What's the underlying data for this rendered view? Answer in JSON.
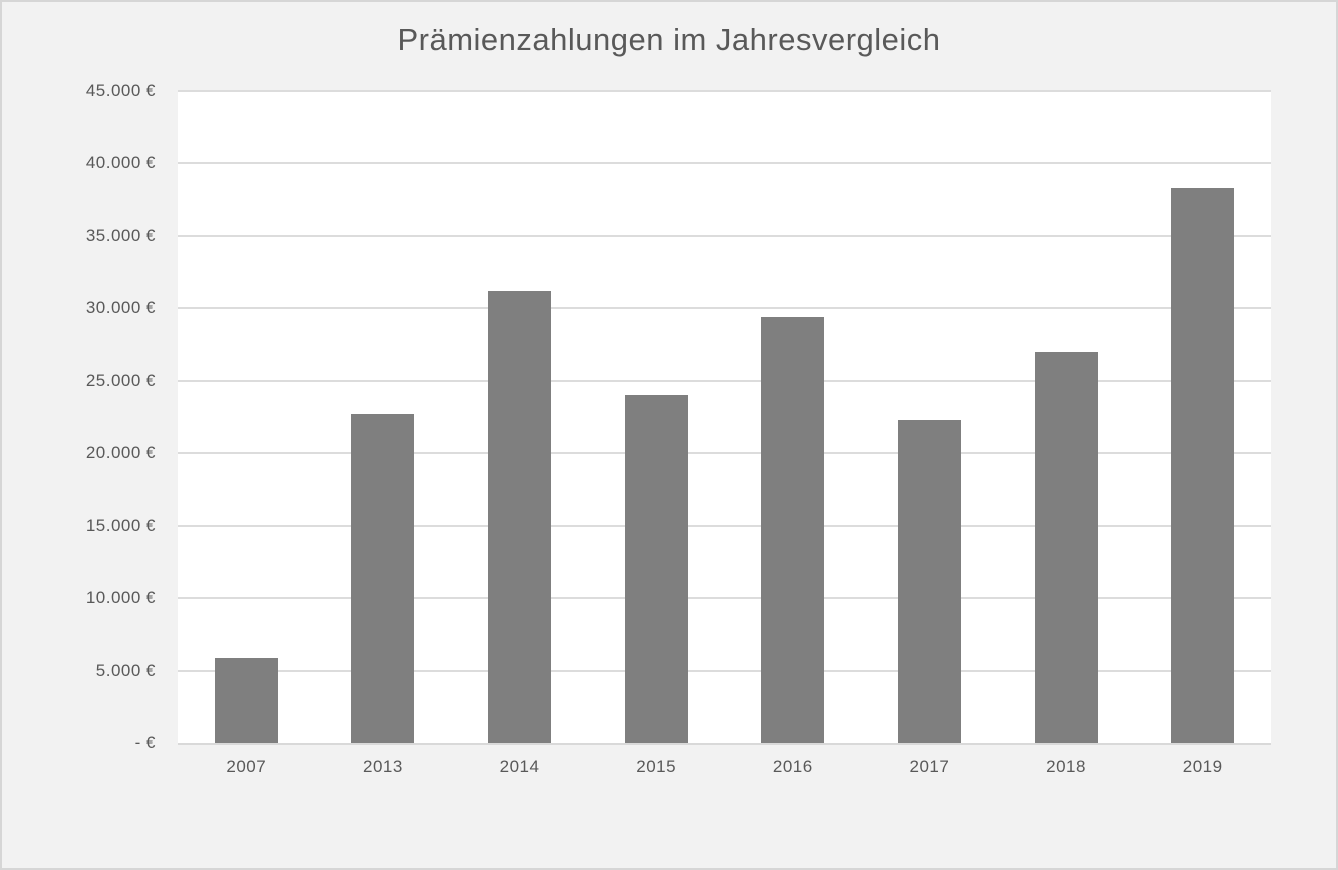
{
  "window": {
    "background": "#f2f2f2",
    "border_color": "#d6d6d6"
  },
  "chart_data": {
    "type": "bar",
    "title": "Prämienzahlungen im Jahresvergleich",
    "xlabel": "",
    "ylabel": "",
    "categories": [
      "2007",
      "2013",
      "2014",
      "2015",
      "2016",
      "2017",
      "2018",
      "2019"
    ],
    "values": [
      5900,
      22700,
      31200,
      24000,
      29400,
      22300,
      27000,
      38300
    ],
    "value_unit": "€",
    "ylim": [
      0,
      45000
    ],
    "grid": true,
    "legend": "none",
    "y_axis": {
      "max": 45000,
      "tick_step": 5000,
      "ticks": [
        {
          "value": 45000,
          "label": "45.000 €"
        },
        {
          "value": 40000,
          "label": "40.000 €"
        },
        {
          "value": 35000,
          "label": "35.000 €"
        },
        {
          "value": 30000,
          "label": "30.000 €"
        },
        {
          "value": 25000,
          "label": "25.000 €"
        },
        {
          "value": 20000,
          "label": "20.000 €"
        },
        {
          "value": 15000,
          "label": "15.000 €"
        },
        {
          "value": 10000,
          "label": "10.000 €"
        },
        {
          "value": 5000,
          "label": "5.000 €"
        },
        {
          "value": 0,
          "label": " -   € "
        }
      ]
    },
    "colors": {
      "bar": "#7f7f7f",
      "plot_background": "#ffffff",
      "page_background": "#f2f2f2",
      "gridline": "#dcdcdc",
      "axis_line": "#d9d9d9",
      "text": "#595959",
      "border": "#d6d6d6"
    }
  }
}
